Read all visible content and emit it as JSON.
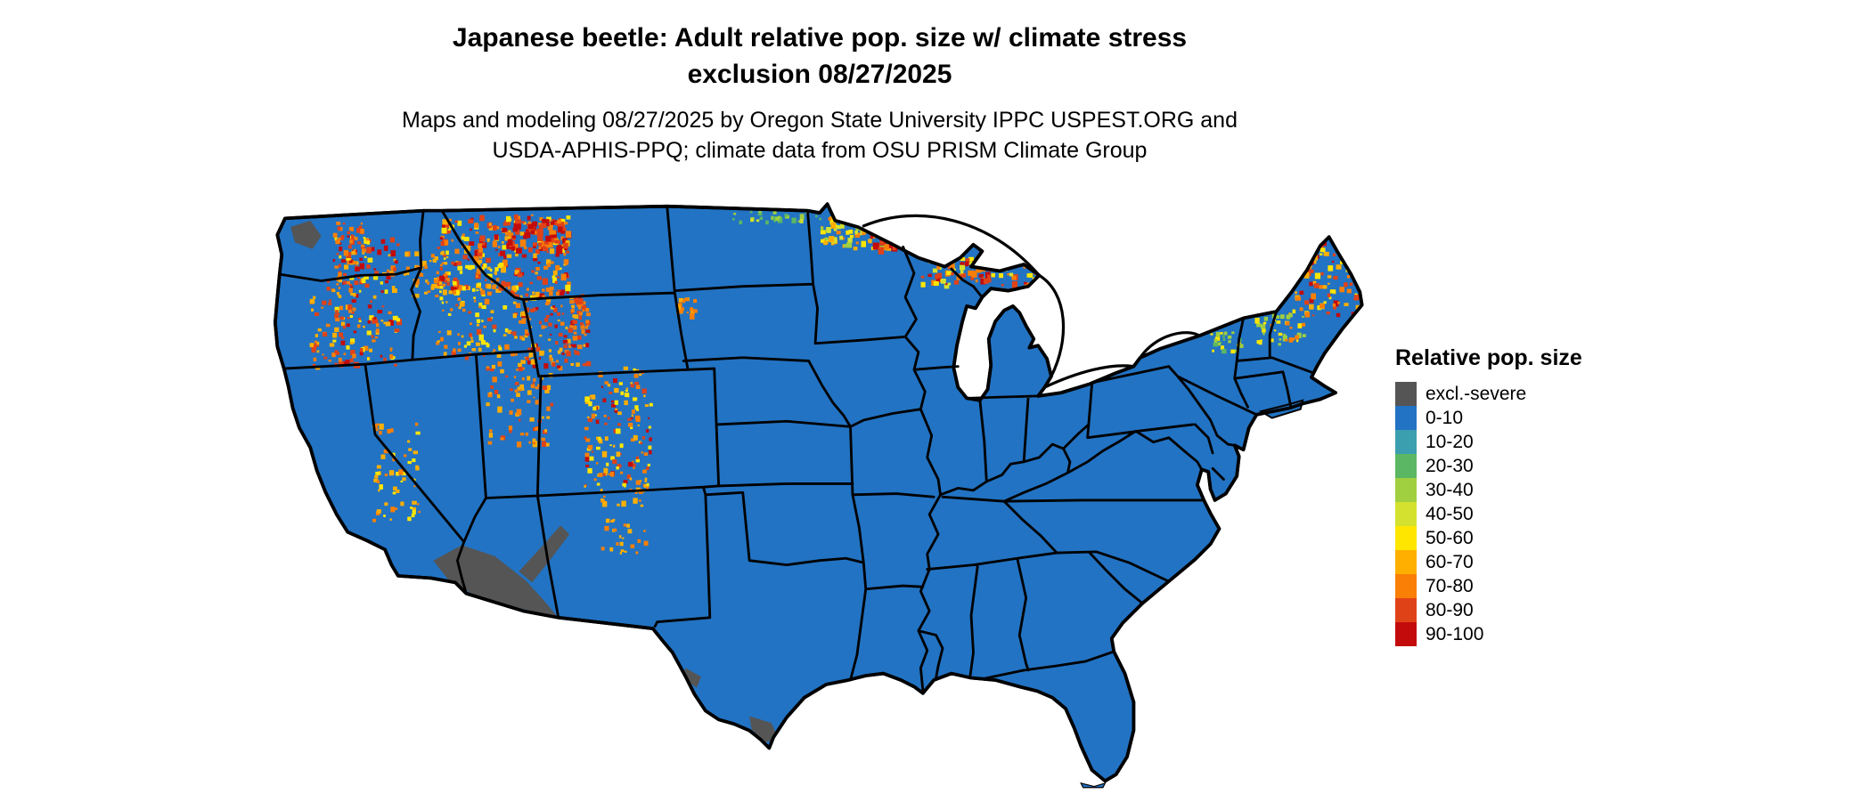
{
  "title": {
    "line1": "Japanese beetle: Adult relative pop. size w/ climate stress",
    "line2": "exclusion 08/27/2025"
  },
  "subtitle": {
    "line1": "Maps and modeling 08/27/2025 by Oregon State University IPPC USPEST.ORG and",
    "line2": "USDA-APHIS-PPQ; climate data from OSU PRISM Climate Group"
  },
  "legend": {
    "title": "Relative pop. size",
    "entries": [
      {
        "label": "excl.-severe",
        "color": "#555555"
      },
      {
        "label": "0-10",
        "color": "#2273c3"
      },
      {
        "label": "10-20",
        "color": "#3b9fb0"
      },
      {
        "label": "20-30",
        "color": "#5bb763"
      },
      {
        "label": "30-40",
        "color": "#a0cf3f"
      },
      {
        "label": "40-50",
        "color": "#d4e22f"
      },
      {
        "label": "50-60",
        "color": "#ffe600"
      },
      {
        "label": "60-70",
        "color": "#ffaf00"
      },
      {
        "label": "70-80",
        "color": "#f97f06"
      },
      {
        "label": "80-90",
        "color": "#e04218"
      },
      {
        "label": "90-100",
        "color": "#c40b0b"
      }
    ]
  }
}
